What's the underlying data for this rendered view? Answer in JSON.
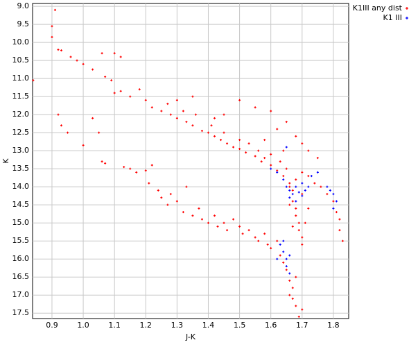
{
  "chart_data": {
    "type": "scatter",
    "x_label": "J-K",
    "y_label": "K",
    "xlim": [
      0.838,
      1.849
    ],
    "ylim": [
      17.65,
      8.92
    ],
    "xticks": [
      0.9,
      {
        "value": 1,
        "label": "1.0"
      },
      1.1,
      1.2,
      1.3,
      1.4,
      1.5,
      1.6,
      1.7,
      1.8
    ],
    "yticks": [
      {
        "value": 9,
        "label": "9.0"
      },
      9.5,
      {
        "value": 10,
        "label": "10.0"
      },
      10.5,
      {
        "value": 11,
        "label": "11.0"
      },
      11.5,
      {
        "value": 12,
        "label": "12.0"
      },
      12.5,
      {
        "value": 13,
        "label": "13.0"
      },
      13.5,
      {
        "value": 14,
        "label": "14.0"
      },
      14.5,
      {
        "value": 15,
        "label": "15.0"
      },
      15.5,
      {
        "value": 16,
        "label": "16.0"
      },
      16.5,
      {
        "value": 17,
        "label": "17.0"
      },
      17.5
    ],
    "grid": true,
    "legend": "outside-top-right",
    "series": [
      {
        "name": "K1III any dist",
        "color": "#ff0000",
        "x": [
          0.91,
          0.9,
          0.9,
          0.92,
          0.93,
          0.96,
          0.98,
          1.0,
          1.03,
          1.06,
          1.1,
          1.12,
          1.07,
          1.09,
          0.84,
          1.1,
          1.12,
          1.15,
          1.18,
          1.2,
          1.22,
          1.25,
          1.27,
          1.28,
          1.3,
          1.32,
          1.33,
          1.35,
          1.36,
          1.38,
          1.4,
          1.41,
          1.42,
          1.44,
          1.45,
          1.46,
          1.48,
          1.5,
          1.5,
          1.52,
          1.53,
          1.55,
          1.56,
          1.57,
          1.58,
          1.6,
          1.6,
          1.62,
          1.63,
          1.64,
          1.65,
          1.66,
          1.67,
          1.67,
          1.68,
          1.68,
          1.69,
          1.69,
          1.7,
          1.7,
          1.71,
          1.72,
          1.7,
          1.66,
          1.67,
          1.66,
          1.68,
          1.7,
          1.72,
          1.74,
          1.76,
          1.78,
          1.8,
          1.81,
          1.82,
          1.82,
          1.83,
          1.75,
          1.72,
          1.7,
          1.68,
          1.65,
          1.6,
          1.55,
          1.5,
          1.45,
          1.62,
          1.64,
          1.58,
          1.42,
          1.35,
          1.3,
          1.13,
          1.15,
          1.17,
          1.2,
          1.22,
          1.21,
          1.24,
          1.25,
          1.27,
          1.28,
          1.3,
          1.32,
          1.33,
          1.35,
          1.37,
          1.38,
          1.4,
          1.42,
          1.43,
          1.45,
          1.46,
          1.48,
          1.5,
          1.51,
          1.53,
          1.55,
          1.56,
          1.58,
          1.59,
          1.6,
          1.62,
          1.63,
          1.64,
          1.65,
          1.66,
          1.67,
          1.67,
          1.68,
          1.69,
          1.66,
          1.68,
          1.7,
          0.92,
          0.93,
          0.95,
          1.0,
          1.05,
          1.06,
          1.07,
          1.03
        ],
        "values": [
          9.1,
          9.55,
          9.85,
          10.2,
          10.22,
          10.4,
          10.5,
          10.6,
          10.75,
          10.3,
          10.3,
          10.4,
          10.95,
          11.05,
          11.05,
          11.4,
          11.35,
          11.5,
          11.3,
          11.6,
          11.8,
          11.9,
          11.7,
          12.0,
          12.1,
          11.9,
          12.2,
          12.3,
          12.0,
          12.45,
          12.5,
          12.3,
          12.6,
          12.7,
          12.5,
          12.8,
          12.9,
          12.95,
          12.7,
          13.05,
          12.8,
          13.15,
          13.0,
          13.3,
          13.2,
          13.4,
          13.1,
          13.55,
          13.3,
          13.7,
          13.5,
          13.9,
          14.1,
          14.4,
          14.6,
          14.8,
          15.0,
          15.2,
          15.4,
          15.6,
          15.0,
          14.6,
          14.2,
          14.5,
          15.1,
          14.0,
          13.8,
          13.6,
          13.7,
          13.9,
          14.0,
          14.2,
          14.4,
          14.7,
          14.9,
          15.2,
          15.5,
          13.2,
          13.0,
          12.8,
          12.6,
          12.2,
          11.9,
          11.8,
          11.6,
          12.0,
          12.4,
          13.0,
          12.7,
          12.1,
          11.5,
          11.6,
          13.45,
          13.5,
          13.6,
          13.55,
          13.4,
          13.9,
          14.1,
          14.3,
          14.5,
          14.2,
          14.4,
          14.7,
          14.0,
          14.8,
          14.6,
          14.9,
          15.0,
          14.8,
          15.1,
          15.0,
          15.2,
          14.9,
          15.1,
          15.3,
          15.2,
          15.4,
          15.5,
          15.3,
          15.6,
          15.7,
          15.5,
          15.9,
          16.1,
          16.3,
          16.6,
          16.8,
          17.1,
          17.3,
          17.6,
          17.0,
          16.5,
          17.4,
          12.0,
          12.3,
          12.5,
          12.85,
          12.5,
          13.3,
          13.35,
          12.1
        ]
      },
      {
        "name": "K1 III",
        "color": "#0000ff",
        "x": [
          1.6,
          1.62,
          1.64,
          1.65,
          1.66,
          1.67,
          1.68,
          1.69,
          1.7,
          1.71,
          1.66,
          1.68,
          1.72,
          1.7,
          1.73,
          1.75,
          1.78,
          1.79,
          1.8,
          1.81,
          1.8,
          1.65,
          1.63,
          1.64,
          1.65,
          1.66,
          1.62,
          1.65,
          1.66,
          1.64
        ],
        "values": [
          13.5,
          13.6,
          13.8,
          14.0,
          14.1,
          14.2,
          14.0,
          14.15,
          14.25,
          14.1,
          14.3,
          14.4,
          14.0,
          13.9,
          13.7,
          13.6,
          14.0,
          14.1,
          14.2,
          14.4,
          14.6,
          12.9,
          15.6,
          15.8,
          16.0,
          15.9,
          16.0,
          16.2,
          16.4,
          15.5
        ]
      }
    ]
  }
}
